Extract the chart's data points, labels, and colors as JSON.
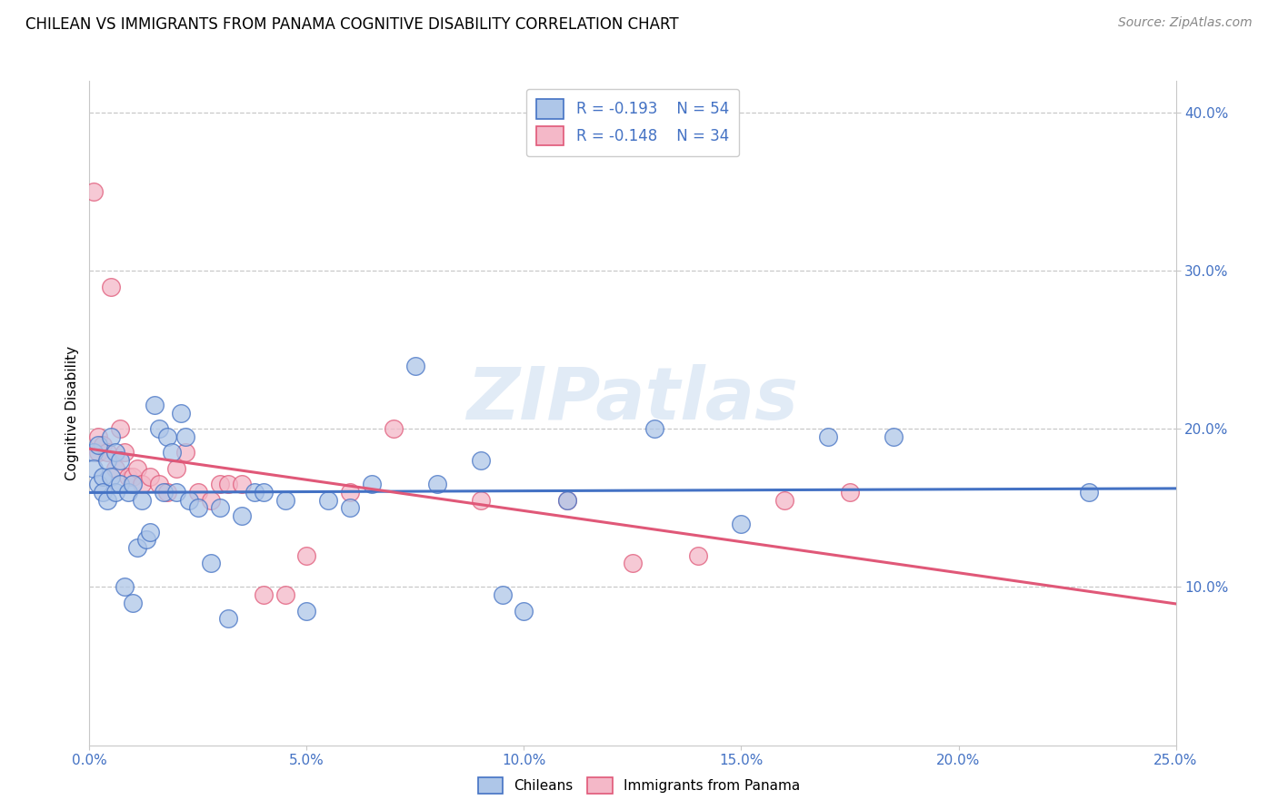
{
  "title": "CHILEAN VS IMMIGRANTS FROM PANAMA COGNITIVE DISABILITY CORRELATION CHART",
  "source": "Source: ZipAtlas.com",
  "ylabel": "Cognitive Disability",
  "watermark": "ZIPatlas",
  "xlim": [
    0.0,
    0.25
  ],
  "ylim": [
    0.0,
    0.42
  ],
  "xticks": [
    0.0,
    0.05,
    0.1,
    0.15,
    0.2,
    0.25
  ],
  "yticks": [
    0.1,
    0.2,
    0.3,
    0.4
  ],
  "ytick_labels": [
    "10.0%",
    "20.0%",
    "30.0%",
    "40.0%"
  ],
  "xtick_labels": [
    "0.0%",
    "5.0%",
    "10.0%",
    "15.0%",
    "20.0%",
    "25.0%"
  ],
  "legend_r1": "R = -0.193",
  "legend_n1": "N = 54",
  "legend_r2": "R = -0.148",
  "legend_n2": "N = 34",
  "chilean_color": "#aec6e8",
  "panama_color": "#f4b8c8",
  "line_chilean_color": "#4472c4",
  "line_panama_color": "#e05878",
  "grid_color": "#c8c8c8",
  "axis_label_color": "#4472c4",
  "chileans_x": [
    0.001,
    0.001,
    0.002,
    0.002,
    0.003,
    0.003,
    0.004,
    0.004,
    0.005,
    0.005,
    0.006,
    0.006,
    0.007,
    0.007,
    0.008,
    0.009,
    0.01,
    0.01,
    0.011,
    0.012,
    0.013,
    0.014,
    0.015,
    0.016,
    0.017,
    0.018,
    0.019,
    0.02,
    0.021,
    0.022,
    0.023,
    0.025,
    0.028,
    0.03,
    0.032,
    0.035,
    0.038,
    0.04,
    0.045,
    0.05,
    0.055,
    0.06,
    0.065,
    0.075,
    0.08,
    0.09,
    0.095,
    0.1,
    0.11,
    0.13,
    0.15,
    0.17,
    0.185,
    0.23
  ],
  "chileans_y": [
    0.185,
    0.175,
    0.19,
    0.165,
    0.17,
    0.16,
    0.18,
    0.155,
    0.195,
    0.17,
    0.185,
    0.16,
    0.18,
    0.165,
    0.1,
    0.16,
    0.165,
    0.09,
    0.125,
    0.155,
    0.13,
    0.135,
    0.215,
    0.2,
    0.16,
    0.195,
    0.185,
    0.16,
    0.21,
    0.195,
    0.155,
    0.15,
    0.115,
    0.15,
    0.08,
    0.145,
    0.16,
    0.16,
    0.155,
    0.085,
    0.155,
    0.15,
    0.165,
    0.24,
    0.165,
    0.18,
    0.095,
    0.085,
    0.155,
    0.2,
    0.14,
    0.195,
    0.195,
    0.16
  ],
  "panama_x": [
    0.001,
    0.002,
    0.002,
    0.003,
    0.004,
    0.005,
    0.006,
    0.007,
    0.008,
    0.009,
    0.01,
    0.011,
    0.012,
    0.014,
    0.016,
    0.018,
    0.02,
    0.022,
    0.025,
    0.028,
    0.03,
    0.032,
    0.035,
    0.04,
    0.045,
    0.05,
    0.06,
    0.07,
    0.09,
    0.11,
    0.125,
    0.14,
    0.16,
    0.175
  ],
  "panama_y": [
    0.35,
    0.185,
    0.195,
    0.19,
    0.185,
    0.29,
    0.175,
    0.2,
    0.185,
    0.17,
    0.17,
    0.175,
    0.165,
    0.17,
    0.165,
    0.16,
    0.175,
    0.185,
    0.16,
    0.155,
    0.165,
    0.165,
    0.165,
    0.095,
    0.095,
    0.12,
    0.16,
    0.2,
    0.155,
    0.155,
    0.115,
    0.12,
    0.155,
    0.16
  ]
}
